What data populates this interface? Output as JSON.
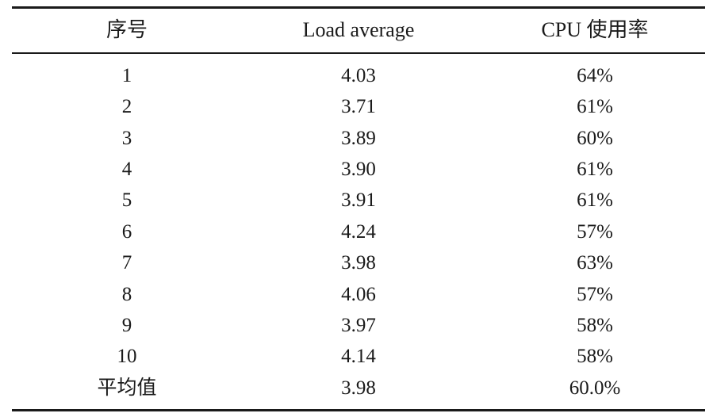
{
  "table": {
    "headers": [
      "序号",
      "Load average",
      "CPU 使用率"
    ],
    "rows": [
      [
        "1",
        "4.03",
        "64%"
      ],
      [
        "2",
        "3.71",
        "61%"
      ],
      [
        "3",
        "3.89",
        "60%"
      ],
      [
        "4",
        "3.90",
        "61%"
      ],
      [
        "5",
        "3.91",
        "61%"
      ],
      [
        "6",
        "4.24",
        "57%"
      ],
      [
        "7",
        "3.98",
        "63%"
      ],
      [
        "8",
        "4.06",
        "57%"
      ],
      [
        "9",
        "3.97",
        "58%"
      ],
      [
        "10",
        "4.14",
        "58%"
      ],
      [
        "平均值",
        "3.98",
        "60.0%"
      ]
    ]
  }
}
